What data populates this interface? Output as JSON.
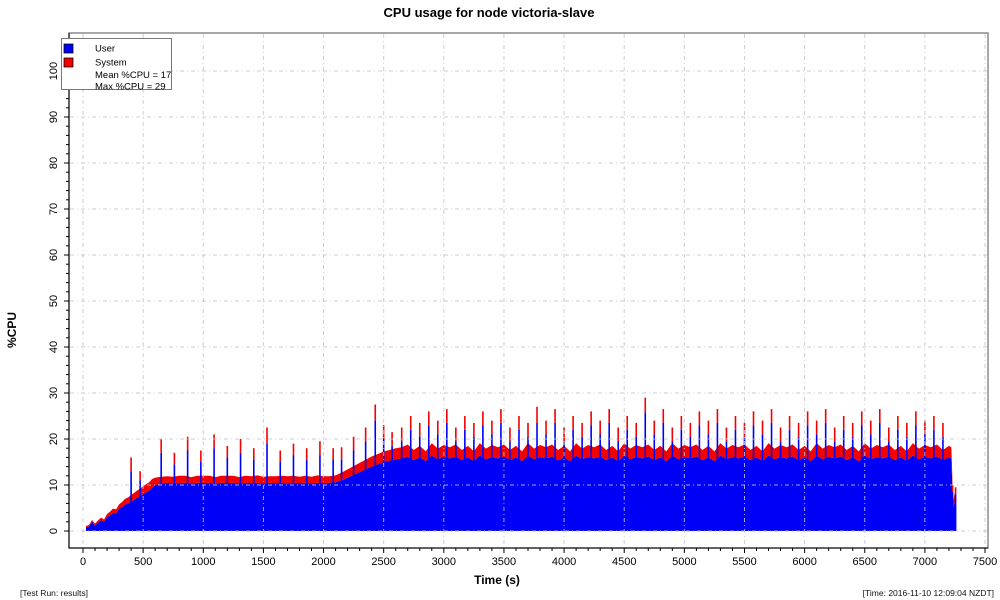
{
  "footer": {
    "left": "[Test Run: results]",
    "right": "[Time: 2016-11-10 12:09:04 NZDT]"
  },
  "chart_data": {
    "type": "area",
    "subtype": "stacked time-series of sampled CPU bars (User + System) with spike bars",
    "title": "CPU usage for node victoria-slave",
    "xlabel": "Time (s)",
    "ylabel": "%CPU",
    "xlim": [
      0,
      7500
    ],
    "ylim": [
      0,
      100
    ],
    "x_major_ticks": [
      0,
      500,
      1000,
      1500,
      2000,
      2500,
      3000,
      3500,
      4000,
      4500,
      5000,
      5500,
      6000,
      6500,
      7000,
      7500
    ],
    "x_minor_step": 100,
    "y_major_ticks": [
      0,
      10,
      20,
      30,
      40,
      50,
      60,
      70,
      80,
      90,
      100
    ],
    "y_minor_step": 2,
    "grid": {
      "style": "dash-dot",
      "at_every_major_tick": true,
      "drawn_over_data": true
    },
    "colors": {
      "user": "#0000f6",
      "system": "#f30000",
      "grid": "rgba(196,196,206,0.85)",
      "frame": "#8c8c8c",
      "axis": "#000000"
    },
    "legend": {
      "position": "top-left",
      "entries": [
        {
          "label": "User",
          "color": "#0000f6"
        },
        {
          "label": "System",
          "color": "#f30000"
        }
      ],
      "stats": [
        "Mean %CPU = 17",
        "Max %CPU = 29"
      ]
    },
    "mean_pct_cpu": 17,
    "max_pct_cpu": 29,
    "base_format": "[time_s, user_pct, system_pct]",
    "base": [
      [
        25,
        0.8,
        0.3
      ],
      [
        50,
        1.0,
        0.3
      ],
      [
        75,
        2.0,
        0.4
      ],
      [
        100,
        1.2,
        0.4
      ],
      [
        125,
        1.8,
        0.5
      ],
      [
        150,
        2.4,
        0.5
      ],
      [
        175,
        2.0,
        0.5
      ],
      [
        200,
        3.0,
        0.7
      ],
      [
        225,
        3.4,
        0.8
      ],
      [
        250,
        4.0,
        0.9
      ],
      [
        275,
        3.8,
        0.9
      ],
      [
        300,
        4.8,
        1.0
      ],
      [
        325,
        5.2,
        1.1
      ],
      [
        350,
        5.8,
        1.2
      ],
      [
        375,
        6.0,
        1.3
      ],
      [
        400,
        6.4,
        1.4
      ],
      [
        425,
        6.8,
        1.5
      ],
      [
        450,
        7.2,
        1.6
      ],
      [
        475,
        7.6,
        1.6
      ],
      [
        500,
        8.0,
        1.7
      ],
      [
        525,
        8.4,
        1.8
      ],
      [
        550,
        8.8,
        1.8
      ],
      [
        575,
        9.4,
        1.9
      ],
      [
        600,
        10.0,
        1.6
      ],
      [
        650,
        10.3,
        1.5
      ],
      [
        700,
        10.5,
        1.4
      ],
      [
        750,
        10.3,
        1.5
      ],
      [
        800,
        10.4,
        1.6
      ],
      [
        850,
        10.5,
        1.5
      ],
      [
        900,
        10.3,
        1.4
      ],
      [
        950,
        10.5,
        1.5
      ],
      [
        1000,
        10.4,
        1.6
      ],
      [
        1050,
        10.5,
        1.5
      ],
      [
        1100,
        10.3,
        1.4
      ],
      [
        1150,
        10.5,
        1.5
      ],
      [
        1200,
        10.4,
        1.6
      ],
      [
        1250,
        10.5,
        1.5
      ],
      [
        1300,
        10.3,
        1.4
      ],
      [
        1350,
        10.5,
        1.5
      ],
      [
        1400,
        10.4,
        1.5
      ],
      [
        1450,
        10.5,
        1.6
      ],
      [
        1500,
        10.3,
        1.5
      ],
      [
        1550,
        10.5,
        1.4
      ],
      [
        1600,
        10.4,
        1.5
      ],
      [
        1650,
        10.5,
        1.5
      ],
      [
        1700,
        10.3,
        1.6
      ],
      [
        1750,
        10.5,
        1.5
      ],
      [
        1800,
        10.4,
        1.4
      ],
      [
        1850,
        10.5,
        1.5
      ],
      [
        1900,
        10.3,
        1.5
      ],
      [
        1950,
        10.5,
        1.6
      ],
      [
        2000,
        10.4,
        1.5
      ],
      [
        2050,
        10.5,
        1.4
      ],
      [
        2100,
        10.6,
        1.5
      ],
      [
        2150,
        11.0,
        1.7
      ],
      [
        2200,
        11.6,
        1.8
      ],
      [
        2250,
        12.2,
        1.9
      ],
      [
        2300,
        12.8,
        2.0
      ],
      [
        2350,
        13.4,
        2.1
      ],
      [
        2400,
        14.0,
        2.2
      ],
      [
        2450,
        14.5,
        2.2
      ],
      [
        2500,
        15.0,
        2.3
      ],
      [
        2550,
        15.3,
        2.3
      ],
      [
        2600,
        15.6,
        2.4
      ],
      [
        2650,
        15.8,
        2.4
      ],
      [
        2700,
        16.2,
        2.6
      ],
      [
        2750,
        15.4,
        2.2
      ],
      [
        2800,
        16.0,
        2.5
      ],
      [
        2850,
        15.2,
        2.1
      ],
      [
        2900,
        16.4,
        2.7
      ],
      [
        2950,
        15.6,
        2.3
      ],
      [
        3000,
        16.1,
        2.6
      ],
      [
        3050,
        15.8,
        2.4
      ],
      [
        3100,
        16.2,
        2.6
      ],
      [
        3150,
        15.4,
        2.2
      ],
      [
        3200,
        16.0,
        2.5
      ],
      [
        3250,
        15.2,
        2.1
      ],
      [
        3300,
        16.4,
        2.7
      ],
      [
        3350,
        15.6,
        2.3
      ],
      [
        3400,
        16.1,
        2.6
      ],
      [
        3450,
        15.8,
        2.4
      ],
      [
        3500,
        16.2,
        2.6
      ],
      [
        3550,
        15.4,
        2.2
      ],
      [
        3600,
        16.0,
        2.5
      ],
      [
        3650,
        15.2,
        2.1
      ],
      [
        3700,
        16.4,
        2.7
      ],
      [
        3750,
        15.6,
        2.3
      ],
      [
        3800,
        16.1,
        2.6
      ],
      [
        3850,
        15.8,
        2.4
      ],
      [
        3900,
        16.2,
        2.6
      ],
      [
        3950,
        15.4,
        2.2
      ],
      [
        4000,
        16.0,
        2.5
      ],
      [
        4050,
        15.2,
        2.1
      ],
      [
        4100,
        16.4,
        2.7
      ],
      [
        4150,
        15.6,
        2.3
      ],
      [
        4200,
        16.1,
        2.6
      ],
      [
        4250,
        15.8,
        2.4
      ],
      [
        4300,
        16.2,
        2.6
      ],
      [
        4350,
        15.4,
        2.2
      ],
      [
        4400,
        16.0,
        2.5
      ],
      [
        4450,
        15.2,
        2.1
      ],
      [
        4500,
        16.4,
        2.7
      ],
      [
        4550,
        15.6,
        2.3
      ],
      [
        4600,
        16.1,
        2.6
      ],
      [
        4650,
        15.8,
        2.4
      ],
      [
        4700,
        16.2,
        2.6
      ],
      [
        4750,
        15.4,
        2.2
      ],
      [
        4800,
        16.0,
        2.5
      ],
      [
        4850,
        15.2,
        2.1
      ],
      [
        4900,
        16.4,
        2.7
      ],
      [
        4950,
        15.6,
        2.3
      ],
      [
        5000,
        16.1,
        2.6
      ],
      [
        5050,
        15.8,
        2.4
      ],
      [
        5100,
        16.2,
        2.6
      ],
      [
        5150,
        15.4,
        2.2
      ],
      [
        5200,
        16.0,
        2.5
      ],
      [
        5250,
        15.2,
        2.1
      ],
      [
        5300,
        16.4,
        2.7
      ],
      [
        5350,
        15.6,
        2.3
      ],
      [
        5400,
        16.1,
        2.6
      ],
      [
        5450,
        15.8,
        2.4
      ],
      [
        5500,
        16.2,
        2.6
      ],
      [
        5550,
        15.4,
        2.2
      ],
      [
        5600,
        16.0,
        2.5
      ],
      [
        5650,
        15.2,
        2.1
      ],
      [
        5700,
        16.4,
        2.7
      ],
      [
        5750,
        15.6,
        2.3
      ],
      [
        5800,
        16.1,
        2.6
      ],
      [
        5850,
        15.8,
        2.4
      ],
      [
        5900,
        16.2,
        2.6
      ],
      [
        5950,
        15.4,
        2.2
      ],
      [
        6000,
        16.0,
        2.5
      ],
      [
        6050,
        15.2,
        2.1
      ],
      [
        6100,
        16.4,
        2.7
      ],
      [
        6150,
        15.6,
        2.3
      ],
      [
        6200,
        16.1,
        2.6
      ],
      [
        6250,
        15.8,
        2.4
      ],
      [
        6300,
        16.2,
        2.6
      ],
      [
        6350,
        15.4,
        2.2
      ],
      [
        6400,
        16.0,
        2.5
      ],
      [
        6450,
        15.2,
        2.1
      ],
      [
        6500,
        16.4,
        2.7
      ],
      [
        6550,
        15.6,
        2.3
      ],
      [
        6600,
        16.1,
        2.6
      ],
      [
        6650,
        15.8,
        2.4
      ],
      [
        6700,
        16.2,
        2.6
      ],
      [
        6750,
        15.4,
        2.2
      ],
      [
        6800,
        16.0,
        2.5
      ],
      [
        6850,
        15.2,
        2.1
      ],
      [
        6900,
        16.4,
        2.7
      ],
      [
        6950,
        15.6,
        2.3
      ],
      [
        7000,
        16.1,
        2.6
      ],
      [
        7050,
        15.8,
        2.4
      ],
      [
        7100,
        16.2,
        2.6
      ],
      [
        7150,
        15.4,
        2.2
      ],
      [
        7200,
        16.0,
        2.5
      ],
      [
        7220,
        15.8,
        2.4
      ],
      [
        7235,
        5.0,
        1.5
      ],
      [
        7250,
        6.5,
        2.0
      ],
      [
        7260,
        5.5,
        1.8
      ]
    ],
    "spikes_format": "[time_s, user_top_pct, total_top_pct]",
    "spikes": [
      [
        400,
        13,
        16
      ],
      [
        475,
        11,
        13
      ],
      [
        650,
        17,
        20
      ],
      [
        760,
        14.5,
        17
      ],
      [
        870,
        17.5,
        20.5
      ],
      [
        980,
        15,
        17.5
      ],
      [
        1090,
        18,
        21
      ],
      [
        1200,
        16,
        18.5
      ],
      [
        1310,
        17,
        20
      ],
      [
        1420,
        15.5,
        18
      ],
      [
        1530,
        19,
        22.5
      ],
      [
        1640,
        15,
        17.5
      ],
      [
        1750,
        16.5,
        19
      ],
      [
        1860,
        15.5,
        18
      ],
      [
        1970,
        16.5,
        19.5
      ],
      [
        2080,
        15.5,
        18
      ],
      [
        2150,
        15.5,
        18.2
      ],
      [
        2250,
        17.5,
        20.5
      ],
      [
        2350,
        19.5,
        22.5
      ],
      [
        2430,
        24,
        27.5
      ],
      [
        2500,
        20,
        23
      ],
      [
        2570,
        18.5,
        21.5
      ],
      [
        2650,
        19.5,
        22.5
      ],
      [
        2725,
        22,
        25
      ],
      [
        2800,
        20.5,
        23.5
      ],
      [
        2875,
        23,
        26
      ],
      [
        2950,
        21,
        24
      ],
      [
        3025,
        23.5,
        26.5
      ],
      [
        3100,
        19.5,
        22.5
      ],
      [
        3175,
        22,
        25
      ],
      [
        3250,
        20.5,
        23.5
      ],
      [
        3325,
        23,
        26
      ],
      [
        3400,
        21,
        24
      ],
      [
        3475,
        23.5,
        26.5
      ],
      [
        3550,
        19.5,
        22.5
      ],
      [
        3625,
        22,
        25
      ],
      [
        3700,
        20.5,
        23.5
      ],
      [
        3775,
        23.5,
        27
      ],
      [
        3850,
        21,
        24
      ],
      [
        3925,
        23.5,
        26.5
      ],
      [
        4000,
        19.5,
        22.5
      ],
      [
        4075,
        22,
        25
      ],
      [
        4150,
        20.5,
        23.5
      ],
      [
        4225,
        23,
        26
      ],
      [
        4300,
        21,
        24
      ],
      [
        4375,
        23.5,
        26.5
      ],
      [
        4450,
        19.5,
        22.5
      ],
      [
        4525,
        22,
        25
      ],
      [
        4600,
        20.5,
        23.5
      ],
      [
        4675,
        25.8,
        29
      ],
      [
        4750,
        21,
        24
      ],
      [
        4825,
        23.5,
        26.5
      ],
      [
        4900,
        19.5,
        22.5
      ],
      [
        4975,
        22,
        25
      ],
      [
        5050,
        20.5,
        23.5
      ],
      [
        5125,
        23,
        26
      ],
      [
        5200,
        21,
        24
      ],
      [
        5275,
        23.5,
        26.5
      ],
      [
        5350,
        19.5,
        22.5
      ],
      [
        5425,
        22,
        25
      ],
      [
        5500,
        20.5,
        23.5
      ],
      [
        5575,
        23,
        26
      ],
      [
        5650,
        21,
        24
      ],
      [
        5725,
        23.5,
        26.5
      ],
      [
        5800,
        19.5,
        22.5
      ],
      [
        5875,
        22,
        25
      ],
      [
        5950,
        20.5,
        23.5
      ],
      [
        6025,
        23,
        26
      ],
      [
        6100,
        21,
        24
      ],
      [
        6175,
        23.5,
        26.5
      ],
      [
        6250,
        19.5,
        22.5
      ],
      [
        6325,
        22,
        25
      ],
      [
        6400,
        20.5,
        23.5
      ],
      [
        6475,
        23,
        26
      ],
      [
        6550,
        21,
        24
      ],
      [
        6625,
        23.5,
        26.5
      ],
      [
        6700,
        19.5,
        22.5
      ],
      [
        6775,
        22,
        25
      ],
      [
        6850,
        20.5,
        23.5
      ],
      [
        6925,
        23,
        26
      ],
      [
        7000,
        21,
        24
      ],
      [
        7075,
        22,
        25
      ],
      [
        7150,
        20.5,
        23.5
      ],
      [
        7230,
        8.5,
        10
      ],
      [
        7255,
        8,
        9.5
      ]
    ]
  }
}
